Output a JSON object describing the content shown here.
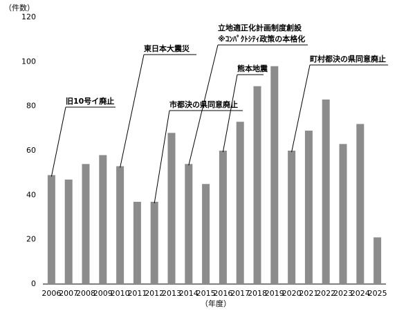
{
  "chart_data": {
    "type": "bar",
    "y_label": "（件数）",
    "x_label": "（年度）",
    "categories": [
      "2006",
      "2007",
      "2008",
      "2009",
      "2010",
      "2011",
      "2012",
      "2013",
      "2014",
      "2015",
      "2016",
      "2017",
      "2018",
      "2019",
      "2020",
      "2021",
      "2022",
      "2023",
      "2024",
      "2025"
    ],
    "values": [
      49,
      47,
      54,
      58,
      53,
      37,
      37,
      68,
      54,
      45,
      60,
      73,
      89,
      98,
      60,
      69,
      83,
      63,
      72,
      21
    ],
    "color": "#8c8c8c",
    "ylim": [
      0,
      120
    ],
    "yticks": [
      0,
      20,
      40,
      60,
      80,
      100,
      120
    ],
    "grid": false,
    "annotations": [
      {
        "text": "旧10号イ廃止"
      },
      {
        "text": "東日本大震災"
      },
      {
        "text": "市都決の県同意廃止"
      },
      {
        "text": "立地適正化計画制度創設",
        "subtext": "※ｺﾝﾊﾟｸﾄｼﾃｨ政策の本格化"
      },
      {
        "text": "熊本地震"
      },
      {
        "text": "町村都決の県同意廃止"
      }
    ]
  }
}
